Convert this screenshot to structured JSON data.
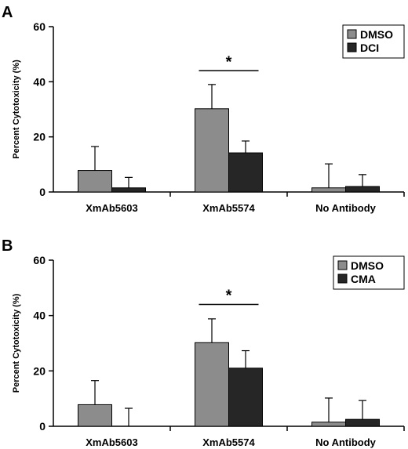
{
  "chart_data": [
    {
      "type": "bar",
      "panel_label": "A",
      "ylabel": "Percent Cytotoxicity (%)",
      "ylim": [
        0,
        60
      ],
      "yticks": [
        0,
        20,
        40,
        60
      ],
      "categories": [
        "XmAb5603",
        "XmAb5574",
        "No Antibody"
      ],
      "series": [
        {
          "name": "DMSO",
          "color": "#8c8c8c",
          "values": [
            7.8,
            30.2,
            1.5
          ],
          "errors": [
            8.7,
            8.8,
            8.7
          ]
        },
        {
          "name": "DCI",
          "color": "#262626",
          "values": [
            1.5,
            14.2,
            2.0
          ],
          "errors": [
            3.8,
            4.3,
            4.3
          ]
        }
      ],
      "legend_position": "top-right",
      "annotations": [
        {
          "text": "*",
          "category": "XmAb5574",
          "y": 44
        }
      ]
    },
    {
      "type": "bar",
      "panel_label": "B",
      "ylabel": "Percent Cytotoxicity (%)",
      "ylim": [
        0,
        60
      ],
      "yticks": [
        0,
        20,
        40,
        60
      ],
      "categories": [
        "XmAb5603",
        "XmAb5574",
        "No Antibody"
      ],
      "series": [
        {
          "name": "DMSO",
          "color": "#8c8c8c",
          "values": [
            7.8,
            30.2,
            1.5
          ],
          "errors": [
            8.7,
            8.6,
            8.7
          ]
        },
        {
          "name": "CMA",
          "color": "#262626",
          "values": [
            0,
            21.0,
            2.5
          ],
          "errors": [
            6.5,
            6.3,
            6.8
          ]
        }
      ],
      "legend_position": "top-right",
      "annotations": [
        {
          "text": "*",
          "category": "XmAb5574",
          "y": 44
        }
      ]
    }
  ]
}
